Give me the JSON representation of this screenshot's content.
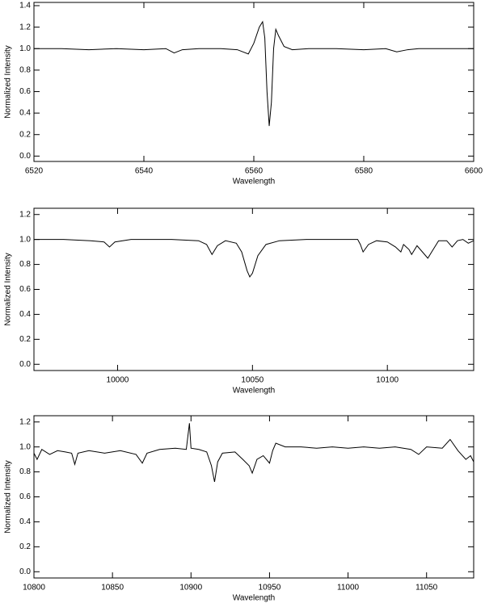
{
  "chart_data": [
    {
      "type": "line",
      "xlabel": "Wavelength",
      "ylabel": "Normalized Intensity",
      "color": "#000000",
      "xlim": [
        6520,
        6600
      ],
      "ylim": [
        -0.05,
        1.43
      ],
      "xticks": [
        6520,
        6540,
        6560,
        6580,
        6600
      ],
      "yticks": [
        {
          "value": 0,
          "label": "0.0"
        },
        0.2,
        0.4,
        0.6,
        0.8,
        {
          "value": 1,
          "label": "1.0"
        },
        1.2,
        1.4
      ],
      "x": [
        6520,
        6525,
        6530,
        6535,
        6540,
        6544,
        6545.5,
        6547,
        6550,
        6554,
        6557,
        6559,
        6560,
        6561,
        6561.6,
        6562.0,
        6562.4,
        6562.8,
        6563.2,
        6563.6,
        6564,
        6564.5,
        6565.5,
        6567,
        6570,
        6575,
        6580,
        6584,
        6586,
        6588,
        6590,
        6595,
        6600
      ],
      "values": [
        1.0,
        1.0,
        0.99,
        1.0,
        0.99,
        1.0,
        0.96,
        0.99,
        1.0,
        1.0,
        0.99,
        0.95,
        1.05,
        1.2,
        1.25,
        1.1,
        0.6,
        0.28,
        0.5,
        1.0,
        1.18,
        1.12,
        1.02,
        0.99,
        1.0,
        1.0,
        0.99,
        1.0,
        0.97,
        0.99,
        1.0,
        1.0,
        1.0
      ]
    },
    {
      "type": "line",
      "xlabel": "Wavelength",
      "ylabel": "Normalized Intensity",
      "color": "#000000",
      "xlim": [
        9969,
        10132
      ],
      "ylim": [
        -0.05,
        1.25
      ],
      "xticks": [
        10000,
        10050,
        10100
      ],
      "yticks": [
        {
          "value": 0,
          "label": "0.0"
        },
        0.2,
        0.4,
        0.6,
        0.8,
        {
          "value": 1,
          "label": "1.0"
        },
        1.2
      ],
      "x": [
        9969,
        9980,
        9990,
        9995,
        9997,
        9999,
        10005,
        10020,
        10030,
        10033,
        10035,
        10037,
        10040,
        10044,
        10046,
        10048,
        10049,
        10050,
        10052,
        10055,
        10060,
        10070,
        10085,
        10089,
        10090,
        10091,
        10093,
        10096,
        10100,
        10103,
        10105,
        10106,
        10108,
        10109,
        10111,
        10113,
        10115,
        10117,
        10119,
        10122,
        10124,
        10126,
        10128,
        10130,
        10132
      ],
      "values": [
        1.0,
        1.0,
        0.99,
        0.98,
        0.94,
        0.98,
        1.0,
        1.0,
        0.99,
        0.96,
        0.88,
        0.95,
        0.99,
        0.97,
        0.9,
        0.75,
        0.7,
        0.73,
        0.87,
        0.96,
        0.99,
        1.0,
        1.0,
        1.0,
        0.96,
        0.9,
        0.96,
        0.99,
        0.98,
        0.94,
        0.9,
        0.96,
        0.92,
        0.88,
        0.95,
        0.9,
        0.85,
        0.92,
        0.99,
        0.99,
        0.94,
        0.99,
        1.0,
        0.97,
        0.99
      ]
    },
    {
      "type": "line",
      "xlabel": "Wavelength",
      "ylabel": "Normalized Intensity",
      "color": "#000000",
      "xlim": [
        10800,
        11080
      ],
      "ylim": [
        -0.05,
        1.25
      ],
      "xticks": [
        10800,
        10850,
        10900,
        10950,
        11000,
        11050
      ],
      "yticks": [
        {
          "value": 0,
          "label": "0.0"
        },
        0.2,
        0.4,
        0.6,
        0.8,
        {
          "value": 1,
          "label": "1.0"
        },
        1.2
      ],
      "x": [
        10800,
        10802,
        10805,
        10810,
        10815,
        10820,
        10824,
        10826,
        10828,
        10835,
        10845,
        10855,
        10865,
        10869,
        10872,
        10880,
        10890,
        10897,
        10899,
        10900,
        10905,
        10910,
        10913,
        10915,
        10917,
        10920,
        10928,
        10933,
        10937,
        10939,
        10942,
        10946,
        10950,
        10952,
        10954,
        10960,
        10970,
        10980,
        10990,
        11000,
        11010,
        11020,
        11030,
        11040,
        11045,
        11050,
        11060,
        11065,
        11070,
        11075,
        11078,
        11080
      ],
      "values": [
        0.95,
        0.9,
        0.98,
        0.94,
        0.97,
        0.96,
        0.95,
        0.86,
        0.95,
        0.97,
        0.95,
        0.97,
        0.94,
        0.87,
        0.95,
        0.98,
        0.99,
        0.98,
        1.19,
        0.99,
        0.98,
        0.96,
        0.85,
        0.72,
        0.88,
        0.95,
        0.96,
        0.9,
        0.85,
        0.79,
        0.9,
        0.93,
        0.87,
        0.97,
        1.03,
        1.0,
        1.0,
        0.99,
        1.0,
        0.99,
        1.0,
        0.99,
        1.0,
        0.98,
        0.94,
        1.0,
        0.99,
        1.06,
        0.97,
        0.9,
        0.93,
        0.88
      ]
    }
  ]
}
